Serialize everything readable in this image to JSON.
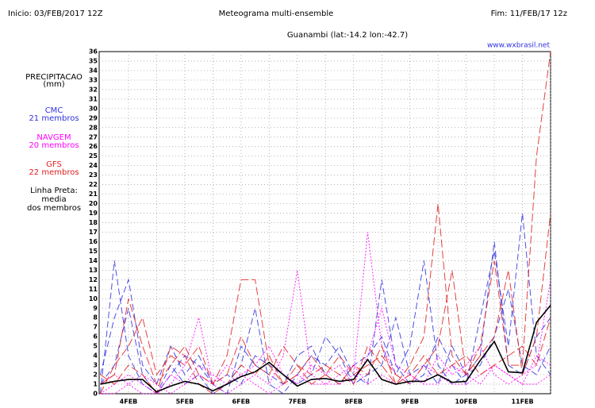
{
  "header": {
    "start": "Inicio: 03/FEB/2017 12Z",
    "title": "Meteograma multi-ensemble",
    "end": "Fim: 11/FEB/17 12z",
    "location": "Guanambi (lat:-14.2 lon:-42.7)",
    "site": "www.wxbrasil.net"
  },
  "chart_data": {
    "type": "line",
    "ylabel": [
      "PRECIPITACAO",
      "(mm)"
    ],
    "mean_label": [
      "Linha Preta:",
      "media",
      "dos membros"
    ],
    "categories": [
      null,
      null,
      "4FEB",
      null,
      null,
      null,
      "5FEB",
      null,
      null,
      null,
      "6FEB",
      null,
      null,
      null,
      "7FEB",
      null,
      null,
      null,
      "8FEB",
      null,
      null,
      null,
      "9FEB",
      null,
      null,
      null,
      "10FEB",
      null,
      null,
      null,
      "11FEB",
      null,
      null
    ],
    "ylim": [
      0,
      36
    ],
    "yticks": [
      0,
      1,
      2,
      3,
      4,
      5,
      6,
      7,
      8,
      9,
      10,
      11,
      12,
      13,
      14,
      15,
      16,
      17,
      18,
      19,
      20,
      21,
      22,
      23,
      24,
      25,
      26,
      27,
      28,
      29,
      30,
      31,
      32,
      33,
      34,
      35,
      36
    ],
    "grid": true,
    "models": [
      {
        "name": "CMC",
        "members_label": "21 membros",
        "color": "#3030e0",
        "members": [
          [
            0,
            14,
            4,
            1,
            0,
            3,
            1,
            2,
            0,
            1,
            3,
            9,
            1,
            0,
            2,
            4,
            3,
            5,
            2,
            1,
            12,
            3,
            1,
            2,
            6,
            3,
            1,
            8,
            15,
            5,
            19,
            4,
            2
          ],
          [
            2,
            8,
            12,
            3,
            1,
            5,
            2,
            4,
            1,
            0,
            5,
            3,
            2,
            1,
            4,
            5,
            2,
            1,
            3,
            4,
            6,
            2,
            5,
            14,
            3,
            1,
            2,
            4,
            16,
            3,
            2,
            6,
            8
          ],
          [
            1,
            3,
            9,
            2,
            0,
            2,
            4,
            3,
            1,
            2,
            1,
            4,
            3,
            2,
            1,
            2,
            6,
            4,
            1,
            2,
            3,
            8,
            2,
            3,
            1,
            5,
            2,
            3,
            6,
            11,
            3,
            2,
            5
          ]
        ]
      },
      {
        "name": "NAVGEM",
        "members_label": "20 membros",
        "color": "#ff00ff",
        "members": [
          [
            0,
            1,
            2,
            1,
            0,
            1,
            3,
            8,
            1,
            0,
            1,
            2,
            1,
            4,
            13,
            2,
            1,
            1,
            2,
            17,
            5,
            2,
            1,
            3,
            2,
            1,
            1,
            2,
            3,
            2,
            1,
            1,
            2
          ],
          [
            1,
            2,
            1,
            0,
            0,
            2,
            1,
            3,
            2,
            1,
            2,
            3,
            5,
            2,
            1,
            3,
            2,
            3,
            1,
            4,
            9,
            3,
            2,
            1,
            4,
            2,
            3,
            5,
            2,
            1,
            2,
            3,
            12
          ],
          [
            0,
            0,
            1,
            2,
            1,
            0,
            1,
            2,
            1,
            3,
            2,
            1,
            0,
            1,
            2,
            1,
            1,
            2,
            3,
            1,
            2,
            1,
            2,
            1,
            1,
            3,
            2,
            1,
            3,
            2,
            1,
            4,
            3
          ]
        ]
      },
      {
        "name": "GFS",
        "members_label": "22 membros",
        "color": "#e02020",
        "members": [
          [
            1,
            2,
            10,
            5,
            1,
            3,
            5,
            2,
            1,
            4,
            12,
            12,
            3,
            1,
            2,
            4,
            2,
            1,
            3,
            2,
            5,
            1,
            3,
            6,
            20,
            4,
            2,
            5,
            14,
            3,
            3,
            25,
            36
          ],
          [
            0,
            3,
            5,
            8,
            2,
            4,
            3,
            5,
            1,
            2,
            6,
            3,
            2,
            5,
            3,
            1,
            2,
            4,
            2,
            3,
            4,
            2,
            1,
            3,
            5,
            13,
            2,
            4,
            6,
            13,
            2,
            6,
            19
          ],
          [
            2,
            1,
            3,
            2,
            0,
            5,
            4,
            1,
            0,
            1,
            3,
            2,
            4,
            1,
            3,
            2,
            3,
            2,
            1,
            5,
            3,
            1,
            2,
            4,
            2,
            3,
            4,
            2,
            3,
            4,
            5,
            3,
            8
          ]
        ]
      }
    ],
    "mean": {
      "color": "#000000",
      "values": [
        1.0,
        1.3,
        1.5,
        1.5,
        0.2,
        0.8,
        1.3,
        1.0,
        0.3,
        1.0,
        1.8,
        2.3,
        3.3,
        2.0,
        0.8,
        1.5,
        1.6,
        1.3,
        1.5,
        3.6,
        1.5,
        1.0,
        1.3,
        1.3,
        2.0,
        1.2,
        1.3,
        3.5,
        5.5,
        2.3,
        2.2,
        7.5,
        9.3
      ]
    }
  }
}
